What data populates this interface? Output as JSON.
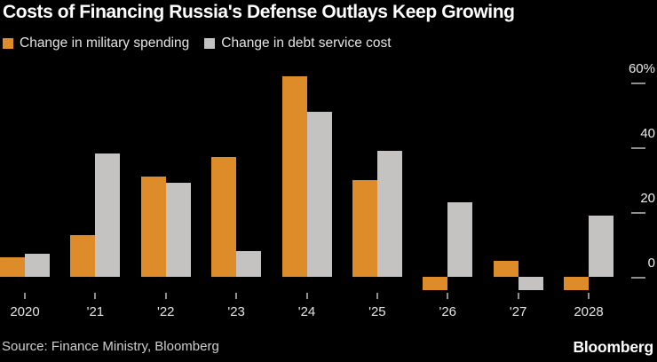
{
  "header": {
    "title": "Costs of Financing Russia's Defense Outlays Keep Growing"
  },
  "colors": {
    "background": "#000000",
    "title_text": "#FFFFFF",
    "axis_text": "#E4E4E4",
    "tick": "#8F8F8F",
    "military_orange": "#DE8C2A",
    "debt_gray": "#C4C3C1"
  },
  "chart_data": {
    "type": "bar",
    "title": "Costs of Financing Russia's Defense Outlays Keep Growing",
    "categories": [
      "2020",
      "2021",
      "2022",
      "2023",
      "2024",
      "2025",
      "2026",
      "2027",
      "2028"
    ],
    "x_tick_labels": [
      "2020",
      "'21",
      "'22",
      "'23",
      "'24",
      "'25",
      "'26",
      "'27",
      "2028"
    ],
    "unit": "%",
    "series": [
      {
        "name": "Change in military spending",
        "color": "#DE8C2A",
        "values": [
          6,
          13,
          31,
          37,
          62,
          30,
          -4,
          5,
          -4
        ]
      },
      {
        "name": "Change in debt service cost",
        "color": "#C4C3C1",
        "values": [
          7,
          38,
          29,
          8,
          51,
          39,
          23,
          -4,
          19
        ]
      }
    ],
    "ylim": [
      -8,
      64
    ],
    "yticks": [
      {
        "value": 60,
        "label": "60%"
      },
      {
        "value": 40,
        "label": "40"
      },
      {
        "value": 20,
        "label": "20"
      },
      {
        "value": 0,
        "label": "0"
      }
    ],
    "grid": false,
    "legend_position": "top-left"
  },
  "footer": {
    "source": "Source: Finance Ministry, Bloomberg",
    "logo": "Bloomberg"
  }
}
